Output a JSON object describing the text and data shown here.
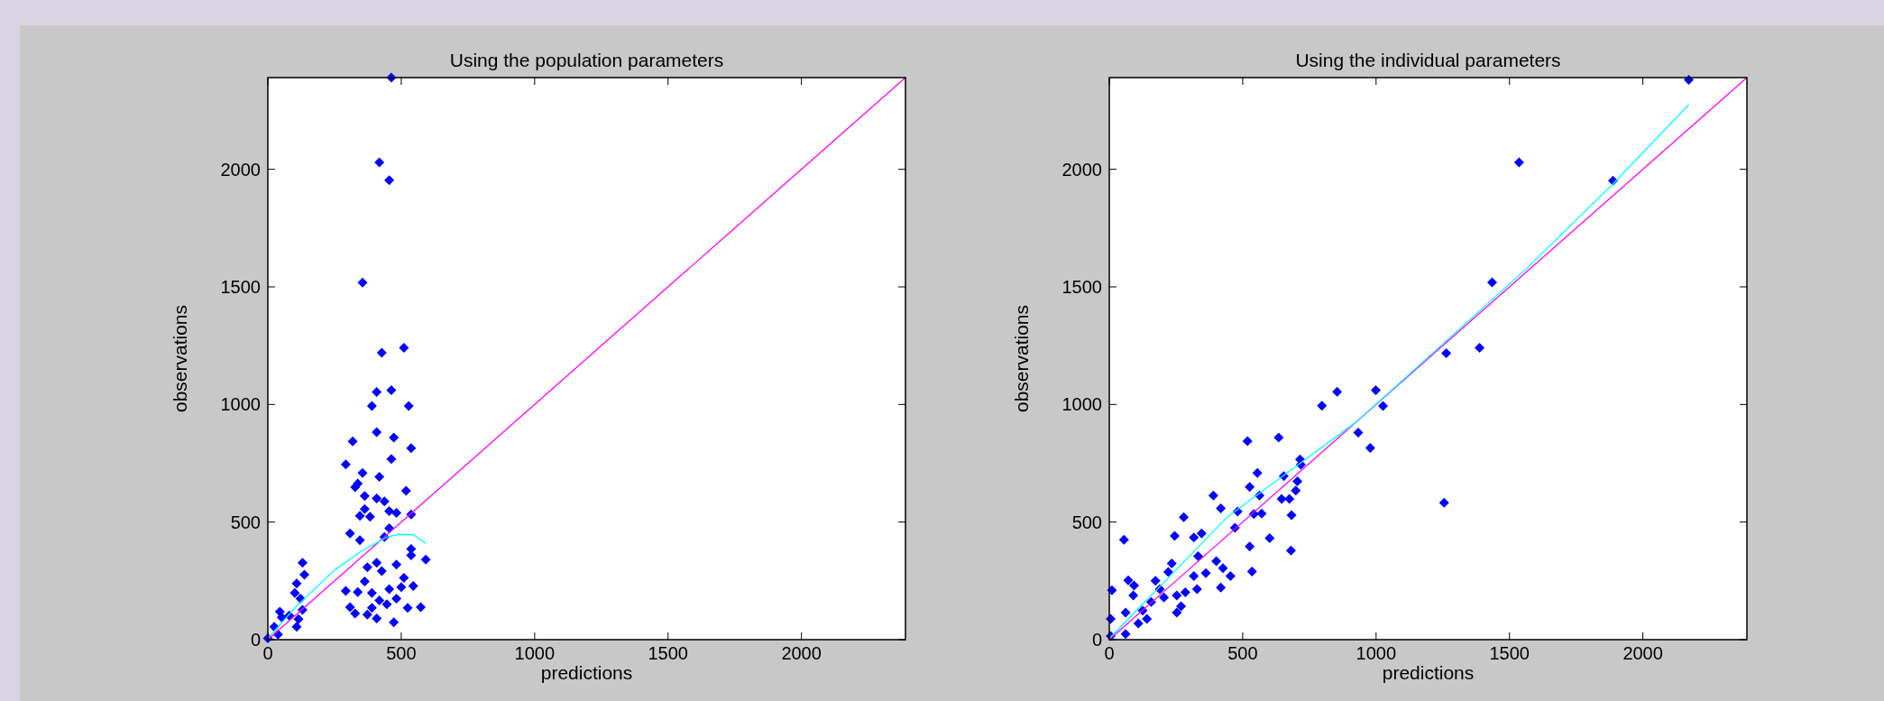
{
  "chart_data": [
    {
      "type": "scatter",
      "title": "Using the population parameters",
      "xlabel": "predictions",
      "ylabel": "observations",
      "xlim": [
        0,
        2390
      ],
      "ylim": [
        0,
        2390
      ],
      "xticks": [
        0,
        500,
        1000,
        1500,
        2000
      ],
      "yticks": [
        0,
        500,
        1000,
        1500,
        2000
      ],
      "grid": false,
      "marker": "diamond",
      "series": [
        {
          "color": "#0000ff",
          "x": [
            463,
            418,
            455,
            355,
            427,
            510,
            408,
            463,
            390,
            528,
            408,
            472,
            318,
            537,
            463,
            292,
            355,
            418,
            337,
            327,
            518,
            363,
            408,
            437,
            363,
            455,
            482,
            345,
            383,
            537,
            455,
            308,
            345,
            437,
            537,
            537,
            592,
            408,
            373,
            482,
            427,
            510,
            292,
            337,
            390,
            455,
            500,
            545,
            418,
            482,
            308,
            573,
            327,
            373,
            408,
            472,
            524,
            130,
            137,
            108,
            101,
            122,
            45,
            52,
            115,
            108,
            38,
            0,
            24,
            80,
            130,
            363,
            446,
            390
          ],
          "values": [
            2390,
            2029,
            1954,
            1518,
            1220,
            1241,
            1053,
            1061,
            994,
            994,
            882,
            859,
            843,
            814,
            768,
            745,
            709,
            692,
            664,
            648,
            633,
            611,
            600,
            588,
            555,
            547,
            539,
            527,
            523,
            532,
            474,
            452,
            423,
            436,
            386,
            359,
            340,
            327,
            308,
            319,
            292,
            263,
            207,
            202,
            199,
            215,
            223,
            228,
            167,
            175,
            138,
            138,
            111,
            106,
            90,
            74,
            135,
            327,
            276,
            239,
            199,
            175,
            119,
            95,
            87,
            55,
            22,
            6,
            55,
            103,
            127,
            247,
            151,
            135
          ]
        },
        {
          "type": "line",
          "color": "#ff00ff",
          "x": [
            0,
            2390
          ],
          "values": [
            0,
            2390
          ],
          "marker": "none"
        },
        {
          "type": "line",
          "color": "#00ffff",
          "x": [
            0,
            108,
            249,
            349,
            446,
            489,
            545,
            592
          ],
          "values": [
            6,
            143,
            295,
            375,
            436,
            447,
            446,
            410
          ],
          "marker": "none"
        }
      ]
    },
    {
      "type": "scatter",
      "title": "Using the individual parameters",
      "xlabel": "predictions",
      "ylabel": "observations",
      "xlim": [
        0,
        2390
      ],
      "ylim": [
        0,
        2390
      ],
      "xticks": [
        0,
        500,
        1000,
        1500,
        2000
      ],
      "yticks": [
        0,
        500,
        1000,
        1500,
        2000
      ],
      "grid": false,
      "marker": "diamond",
      "series": [
        {
          "color": "#0000ff",
          "x": [
            2172,
            1536,
            1888,
            1435,
            1388,
            1263,
            999,
            854,
            797,
            1026,
            933,
            978,
            518,
            635,
            715,
            718,
            555,
            654,
            705,
            526,
            699,
            563,
            646,
            675,
            390,
            418,
            481,
            542,
            571,
            683,
            471,
            1255,
            279,
            55,
            245,
            346,
            317,
            601,
            526,
            681,
            333,
            401,
            234,
            426,
            362,
            454,
            535,
            317,
            418,
            329,
            285,
            253,
            173,
            71,
            93,
            10,
            90,
            205,
            157,
            269,
            253,
            141,
            61,
            109,
            61,
            5,
            5,
            221,
            189,
            125
          ],
          "values": [
            2380,
            2029,
            1952,
            1519,
            1241,
            1218,
            1061,
            1054,
            995,
            994,
            880,
            815,
            844,
            859,
            766,
            744,
            709,
            695,
            673,
            649,
            634,
            613,
            598,
            598,
            613,
            558,
            545,
            534,
            536,
            529,
            476,
            582,
            521,
            425,
            441,
            452,
            434,
            432,
            396,
            379,
            355,
            334,
            324,
            304,
            283,
            270,
            290,
            270,
            222,
            215,
            201,
            188,
            250,
            252,
            230,
            210,
            188,
            179,
            160,
            142,
            115,
            88,
            115,
            69,
            24,
            88,
            15,
            288,
            215,
            124
          ]
        },
        {
          "type": "line",
          "color": "#ff00ff",
          "x": [
            0,
            2390
          ],
          "values": [
            0,
            2390
          ],
          "marker": "none"
        },
        {
          "type": "line",
          "color": "#00ffff",
          "x": [
            0,
            446,
            926,
            1568,
            1888,
            2172
          ],
          "values": [
            5,
            525,
            926,
            1582,
            1938,
            2275
          ],
          "marker": "none"
        }
      ]
    }
  ]
}
